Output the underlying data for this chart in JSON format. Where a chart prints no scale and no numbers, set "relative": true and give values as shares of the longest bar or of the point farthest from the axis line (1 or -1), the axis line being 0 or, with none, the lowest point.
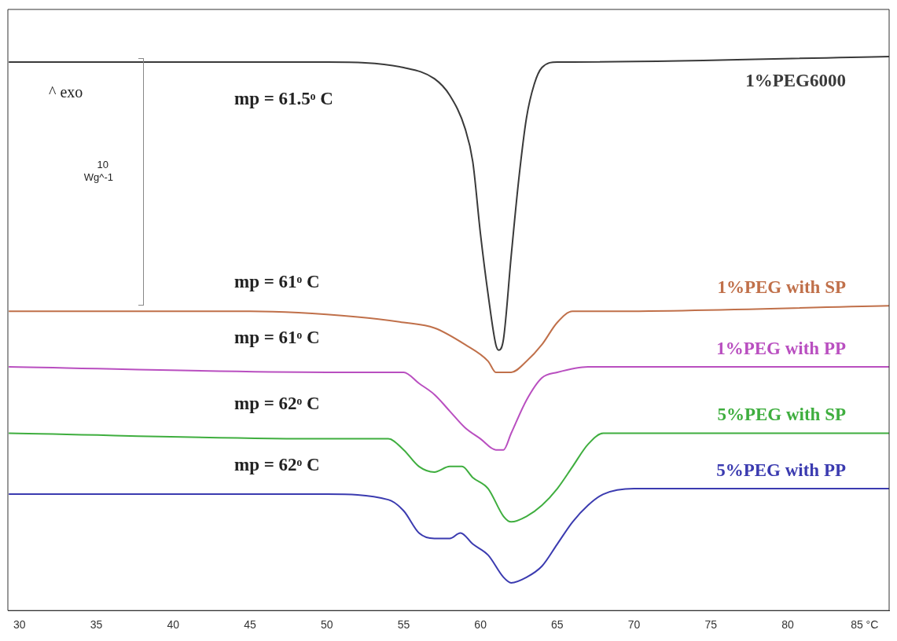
{
  "chart_data": {
    "type": "line",
    "relative": true,
    "xlim": [
      29.24,
      86.6
    ],
    "xticks": [
      30,
      35,
      40,
      45,
      50,
      55,
      60,
      65,
      70,
      75,
      80,
      {
        "value": 85,
        "label": "85 °C"
      }
    ],
    "grid": false,
    "legend": false,
    "annotations": [
      "^ exo",
      "10",
      "Wg^-1",
      "mp = 61.5ᵒ C",
      "mp = 61ᵒ C",
      "mp = 61ᵒ C",
      "mp = 62ᵒ C",
      "mp = 62ᵒ C"
    ],
    "series": [
      {
        "name": "1%PEG6000",
        "color": "#3a3a3a",
        "x": [
          29.3,
          50,
          55,
          57,
          58,
          59,
          59.5,
          60,
          60.5,
          61,
          61.2,
          61.5,
          62,
          62.5,
          63,
          63.5,
          64,
          65,
          66,
          86.6
        ],
        "values": [
          0.99,
          0.99,
          0.98,
          0.96,
          0.93,
          0.87,
          0.81,
          0.68,
          0.57,
          0.48,
          0.47,
          0.49,
          0.64,
          0.78,
          0.89,
          0.95,
          0.98,
          0.99,
          0.99,
          1
        ]
      },
      {
        "name": "1%PEG with SP",
        "color": "#c0704a",
        "x": [
          29.3,
          45,
          52,
          55,
          57,
          59,
          60.5,
          61,
          62,
          63,
          64,
          65,
          66,
          68,
          86.6
        ],
        "values": [
          0.54,
          0.54,
          0.53,
          0.52,
          0.51,
          0.48,
          0.45,
          0.43,
          0.43,
          0.45,
          0.48,
          0.52,
          0.54,
          0.54,
          0.55
        ]
      },
      {
        "name": "1%PEG with PP",
        "color": "#b94fc0",
        "x": [
          29.3,
          50,
          55,
          56,
          57,
          58,
          59,
          60,
          61,
          61.5,
          62,
          63,
          64,
          65,
          67,
          86.6
        ],
        "values": [
          0.44,
          0.43,
          0.43,
          0.41,
          0.39,
          0.36,
          0.33,
          0.31,
          0.29,
          0.29,
          0.32,
          0.38,
          0.42,
          0.43,
          0.44,
          0.44
        ]
      },
      {
        "name": "5%PEG with SP",
        "color": "#3fae3f",
        "x": [
          29.3,
          50,
          54,
          55,
          56,
          57,
          58,
          58.8,
          59.5,
          60.5,
          61.5,
          62,
          63,
          64,
          65,
          66,
          67,
          68,
          70,
          86.6
        ],
        "values": [
          0.32,
          0.31,
          0.31,
          0.29,
          0.26,
          0.25,
          0.26,
          0.26,
          0.24,
          0.22,
          0.17,
          0.16,
          0.17,
          0.19,
          0.22,
          0.26,
          0.3,
          0.32,
          0.32,
          0.32
        ]
      },
      {
        "name": "5%PEG with PP",
        "color": "#3b3bb0",
        "x": [
          29.3,
          50,
          54,
          55,
          56,
          57,
          58,
          58.7,
          59.5,
          60.5,
          61.5,
          62,
          63,
          64,
          65,
          66,
          67,
          68,
          70,
          86.6
        ],
        "values": [
          0.21,
          0.21,
          0.2,
          0.18,
          0.14,
          0.13,
          0.13,
          0.14,
          0.12,
          0.1,
          0.06,
          0.05,
          0.06,
          0.08,
          0.12,
          0.16,
          0.19,
          0.21,
          0.22,
          0.22
        ]
      }
    ]
  }
}
